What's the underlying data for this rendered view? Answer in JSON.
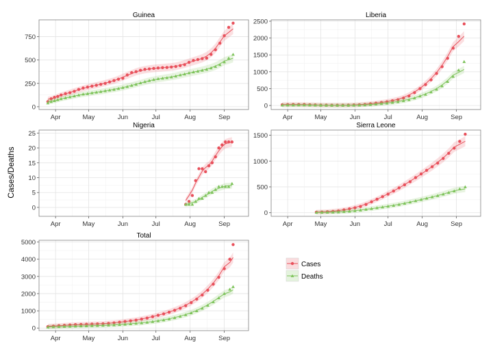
{
  "chart_data": {
    "type": "line",
    "figure_ylabel": "Cases/Deaths",
    "x_ticks": [
      "Apr",
      "May",
      "Jun",
      "Jul",
      "Aug",
      "Sep"
    ],
    "x_tick_days": [
      0,
      30,
      61,
      91,
      122,
      153
    ],
    "xlim_days": [
      -15,
      175
    ],
    "x_day_zero": "2014-04-01",
    "legend": {
      "entries": [
        "Cases",
        "Deaths"
      ],
      "colors": [
        "#E8505B",
        "#7DC35A"
      ],
      "markers": [
        "circle",
        "triangle"
      ]
    },
    "panels": [
      {
        "title": "Guinea",
        "ylim": [
          -30,
          930
        ],
        "y_ticks": [
          0,
          250,
          500,
          750
        ],
        "series": [
          {
            "name": "Cases",
            "x": [
              -7,
              -4,
              -1,
              2,
              5,
              9,
              13,
              17,
              21,
              25,
              29,
              33,
              37,
              41,
              45,
              49,
              53,
              57,
              61,
              65,
              69,
              73,
              77,
              81,
              85,
              89,
              93,
              97,
              101,
              105,
              109,
              113,
              117,
              121,
              125,
              129,
              133,
              137,
              141,
              145,
              149,
              153,
              157,
              161
            ],
            "y": [
              55,
              85,
              100,
              110,
              125,
              140,
              150,
              165,
              185,
              200,
              210,
              220,
              230,
              240,
              250,
              265,
              280,
              295,
              305,
              340,
              365,
              375,
              390,
              400,
              405,
              410,
              415,
              418,
              420,
              425,
              430,
              440,
              450,
              475,
              495,
              505,
              515,
              520,
              560,
              610,
              680,
              760,
              850,
              895
            ]
          },
          {
            "name": "Deaths",
            "x": [
              -7,
              -4,
              -1,
              2,
              5,
              9,
              13,
              17,
              21,
              25,
              29,
              33,
              37,
              41,
              45,
              49,
              53,
              57,
              61,
              65,
              69,
              73,
              77,
              81,
              85,
              89,
              93,
              97,
              101,
              105,
              109,
              113,
              117,
              121,
              125,
              129,
              133,
              137,
              141,
              145,
              149,
              153,
              157,
              161
            ],
            "y": [
              40,
              55,
              65,
              75,
              85,
              95,
              105,
              115,
              125,
              135,
              140,
              148,
              155,
              162,
              170,
              178,
              185,
              195,
              205,
              215,
              228,
              240,
              255,
              268,
              280,
              290,
              300,
              305,
              310,
              318,
              328,
              340,
              350,
              362,
              372,
              380,
              390,
              400,
              415,
              430,
              450,
              480,
              520,
              560
            ]
          }
        ]
      },
      {
        "title": "Liberia",
        "ylim": [
          -120,
          2540
        ],
        "y_ticks": [
          0,
          500,
          1000,
          1500,
          2000,
          2500
        ],
        "series": [
          {
            "name": "Cases",
            "x": [
              -5,
              0,
              5,
              10,
              15,
              20,
              25,
              30,
              35,
              40,
              45,
              50,
              55,
              60,
              65,
              70,
              75,
              80,
              85,
              90,
              95,
              100,
              105,
              110,
              115,
              120,
              125,
              130,
              135,
              140,
              145,
              150,
              155,
              160
            ],
            "y": [
              20,
              25,
              30,
              28,
              30,
              20,
              15,
              10,
              10,
              8,
              8,
              8,
              10,
              15,
              20,
              30,
              50,
              70,
              90,
              110,
              140,
              170,
              220,
              280,
              380,
              500,
              620,
              760,
              950,
              1150,
              1400,
              1700,
              2050,
              2420
            ]
          },
          {
            "name": "Deaths",
            "x": [
              -5,
              0,
              5,
              10,
              15,
              20,
              25,
              30,
              35,
              40,
              45,
              50,
              55,
              60,
              65,
              70,
              75,
              80,
              85,
              90,
              95,
              100,
              105,
              110,
              115,
              120,
              125,
              130,
              135,
              140,
              145,
              150,
              155,
              160
            ],
            "y": [
              10,
              12,
              14,
              15,
              15,
              12,
              10,
              8,
              6,
              5,
              5,
              5,
              6,
              8,
              10,
              15,
              25,
              40,
              55,
              70,
              90,
              110,
              140,
              170,
              220,
              280,
              330,
              400,
              480,
              580,
              710,
              860,
              1050,
              1300
            ]
          }
        ]
      },
      {
        "title": "Nigeria",
        "ylim": [
          -3,
          26
        ],
        "y_ticks": [
          0,
          5,
          10,
          15,
          20,
          25
        ],
        "series": [
          {
            "name": "Cases",
            "x": [
              118,
              121,
              124,
              127,
              130,
              133,
              136,
              139,
              142,
              145,
              148,
              151,
              154,
              157,
              160
            ],
            "y": [
              1,
              2,
              4,
              9,
              13,
              13,
              12,
              14,
              15,
              17,
              20,
              21,
              22,
              22,
              22
            ]
          },
          {
            "name": "Deaths",
            "x": [
              118,
              121,
              124,
              127,
              130,
              133,
              136,
              139,
              142,
              145,
              148,
              151,
              154,
              157,
              160
            ],
            "y": [
              1,
              1,
              1,
              2,
              3,
              3,
              4,
              5,
              5,
              6,
              7,
              7,
              7,
              7,
              8
            ]
          }
        ]
      },
      {
        "title": "Sierra Leone",
        "ylim": [
          -70,
          1600
        ],
        "y_ticks": [
          0,
          500,
          1000,
          1500
        ],
        "series": [
          {
            "name": "Cases",
            "x": [
              26,
              31,
              36,
              41,
              46,
              51,
              56,
              61,
              66,
              71,
              76,
              81,
              86,
              91,
              96,
              101,
              106,
              111,
              116,
              121,
              126,
              131,
              136,
              141,
              146,
              151,
              156,
              161
            ],
            "y": [
              10,
              12,
              18,
              25,
              35,
              55,
              75,
              95,
              120,
              160,
              210,
              260,
              310,
              360,
              420,
              480,
              540,
              600,
              680,
              750,
              820,
              890,
              960,
              1050,
              1150,
              1250,
              1380,
              1520
            ]
          },
          {
            "name": "Deaths",
            "x": [
              26,
              31,
              36,
              41,
              46,
              51,
              56,
              61,
              66,
              71,
              76,
              81,
              86,
              91,
              96,
              101,
              106,
              111,
              116,
              121,
              126,
              131,
              136,
              141,
              146,
              151,
              156,
              161
            ],
            "y": [
              5,
              6,
              8,
              10,
              14,
              20,
              28,
              38,
              50,
              65,
              80,
              95,
              110,
              125,
              140,
              160,
              180,
              205,
              230,
              255,
              280,
              305,
              330,
              360,
              390,
              420,
              460,
              500
            ]
          }
        ]
      },
      {
        "title": "Total",
        "ylim": [
          -150,
          5100
        ],
        "y_ticks": [
          0,
          1000,
          2000,
          3000,
          4000,
          5000
        ],
        "series": [
          {
            "name": "Cases",
            "x": [
              -7,
              -2,
              3,
              8,
              13,
              18,
              23,
              28,
              33,
              38,
              43,
              48,
              53,
              58,
              63,
              68,
              73,
              78,
              83,
              88,
              93,
              98,
              103,
              108,
              113,
              118,
              123,
              128,
              133,
              138,
              143,
              148,
              153,
              158,
              161
            ],
            "y": [
              80,
              110,
              140,
              160,
              180,
              200,
              210,
              220,
              230,
              240,
              250,
              270,
              300,
              340,
              380,
              420,
              460,
              520,
              580,
              660,
              740,
              820,
              920,
              1030,
              1150,
              1300,
              1480,
              1680,
              1920,
              2200,
              2550,
              2950,
              3450,
              4000,
              4850
            ]
          },
          {
            "name": "Deaths",
            "x": [
              -7,
              -2,
              3,
              8,
              13,
              18,
              23,
              28,
              33,
              38,
              43,
              48,
              53,
              58,
              63,
              68,
              73,
              78,
              83,
              88,
              93,
              98,
              103,
              108,
              113,
              118,
              123,
              128,
              133,
              138,
              143,
              148,
              153,
              158,
              161
            ],
            "y": [
              50,
              65,
              80,
              92,
              100,
              110,
              118,
              125,
              135,
              145,
              155,
              168,
              182,
              200,
              220,
              245,
              272,
              300,
              335,
              375,
              420,
              470,
              530,
              600,
              680,
              770,
              880,
              1000,
              1150,
              1320,
              1520,
              1750,
              2000,
              2250,
              2400
            ]
          }
        ]
      }
    ]
  }
}
